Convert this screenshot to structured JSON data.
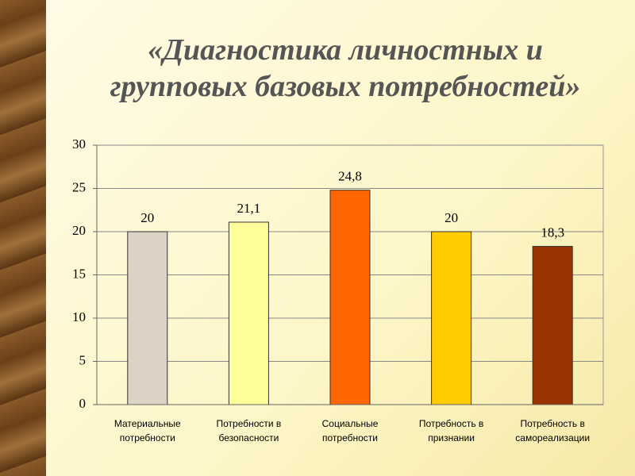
{
  "chart_data": {
    "type": "bar",
    "title": "«Диагностика личностных и групповых базовых потребностей»",
    "categories": [
      [
        "Материальные",
        "потребности"
      ],
      [
        "Потребности в",
        "безопасности"
      ],
      [
        "Социальные",
        "потребности"
      ],
      [
        "Потребность в",
        "признании"
      ],
      [
        "Потребность в",
        "самореализации"
      ]
    ],
    "values": [
      20,
      21.1,
      24.8,
      20,
      18.3
    ],
    "value_labels": [
      "20",
      "21,1",
      "24,8",
      "20",
      "18,3"
    ],
    "colors": [
      "#ddd3c4",
      "#ffff99",
      "#ff6600",
      "#ffcc00",
      "#993300"
    ],
    "ylim": [
      0,
      30
    ],
    "yticks": [
      0,
      5,
      10,
      15,
      20,
      25,
      30
    ],
    "grid": true
  }
}
